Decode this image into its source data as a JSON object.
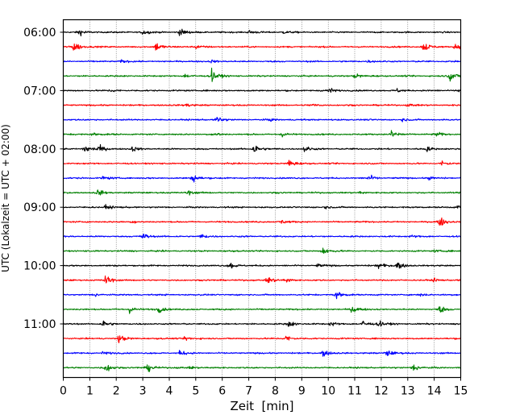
{
  "chart_data": {
    "type": "line",
    "subtype": "seismogram-helicorder",
    "xlabel": "Zeit  [min]",
    "ylabel": "UTC (Lokalzeit = UTC + 02:00)",
    "xlim": [
      0,
      15
    ],
    "x_ticks": [
      0,
      1,
      2,
      3,
      4,
      5,
      6,
      7,
      8,
      9,
      10,
      11,
      12,
      13,
      14,
      15
    ],
    "x_tick_labels": [
      "0",
      "1",
      "2",
      "3",
      "4",
      "5",
      "6",
      "7",
      "8",
      "9",
      "10",
      "11",
      "12",
      "13",
      "14",
      "15"
    ],
    "y_tick_labels": [
      "06:00",
      "07:00",
      "08:00",
      "09:00",
      "10:00",
      "11:00"
    ],
    "traces_per_hour": 4,
    "trace_minutes": 15,
    "trace_count": 24,
    "first_trace": "06:00",
    "trace_colors": [
      "#000000",
      "#ff0000",
      "#0000ff",
      "#008000"
    ],
    "vertical_grid": "dotted",
    "events": [
      [
        [
          0.6,
          1.2
        ],
        [
          3.0,
          1.0
        ],
        [
          4.4,
          1.4
        ],
        [
          7.0,
          0.7
        ],
        [
          8.3,
          0.5
        ]
      ],
      [
        [
          0.4,
          2.2
        ],
        [
          3.5,
          2.0
        ],
        [
          5.0,
          0.8
        ],
        [
          13.6,
          2.0
        ],
        [
          14.8,
          1.2
        ]
      ],
      [
        [
          2.2,
          0.5
        ],
        [
          5.6,
          0.5
        ],
        [
          11.5,
          0.4
        ]
      ],
      [
        [
          4.6,
          0.7
        ],
        [
          5.6,
          2.3
        ],
        [
          11.0,
          1.0
        ],
        [
          14.6,
          2.0
        ]
      ],
      [
        [
          1.8,
          0.5
        ],
        [
          10.0,
          1.2
        ],
        [
          12.6,
          0.6
        ],
        [
          14.9,
          0.9
        ]
      ],
      [
        [
          4.6,
          0.8
        ],
        [
          9.4,
          0.5
        ],
        [
          13.0,
          0.5
        ]
      ],
      [
        [
          5.8,
          1.2
        ],
        [
          7.8,
          0.5
        ],
        [
          12.8,
          0.4
        ]
      ],
      [
        [
          1.1,
          0.7
        ],
        [
          5.7,
          0.8
        ],
        [
          8.2,
          1.0
        ],
        [
          12.4,
          1.9
        ],
        [
          14.1,
          0.8
        ]
      ],
      [
        [
          0.8,
          1.8
        ],
        [
          1.3,
          1.5
        ],
        [
          2.6,
          0.9
        ],
        [
          7.2,
          2.0
        ],
        [
          9.1,
          1.1
        ],
        [
          13.7,
          0.9
        ]
      ],
      [
        [
          8.5,
          1.7
        ],
        [
          14.3,
          0.9
        ]
      ],
      [
        [
          1.5,
          0.7
        ],
        [
          4.9,
          1.6
        ],
        [
          11.5,
          1.3
        ],
        [
          13.8,
          0.5
        ]
      ],
      [
        [
          1.3,
          1.1
        ],
        [
          4.7,
          1.0
        ],
        [
          11.2,
          0.5
        ]
      ],
      [
        [
          1.6,
          0.9
        ],
        [
          9.8,
          0.6
        ],
        [
          14.9,
          0.8
        ]
      ],
      [
        [
          2.6,
          0.5
        ],
        [
          8.2,
          0.8
        ],
        [
          14.2,
          2.0
        ]
      ],
      [
        [
          3.0,
          1.4
        ],
        [
          5.2,
          0.9
        ],
        [
          13.1,
          0.5
        ]
      ],
      [
        [
          9.8,
          1.7
        ],
        [
          14.0,
          0.4
        ]
      ],
      [
        [
          6.3,
          1.4
        ],
        [
          9.6,
          0.6
        ],
        [
          11.9,
          1.3
        ],
        [
          12.6,
          1.5
        ]
      ],
      [
        [
          1.6,
          2.0
        ],
        [
          7.7,
          1.6
        ],
        [
          8.4,
          0.9
        ],
        [
          14.0,
          0.6
        ]
      ],
      [
        [
          1.2,
          0.5
        ],
        [
          10.3,
          1.6
        ],
        [
          13.5,
          0.5
        ]
      ],
      [
        [
          2.5,
          1.3
        ],
        [
          3.6,
          1.2
        ],
        [
          10.9,
          1.6
        ],
        [
          14.2,
          1.4
        ]
      ],
      [
        [
          1.5,
          1.4
        ],
        [
          8.5,
          1.3
        ],
        [
          10.1,
          0.9
        ],
        [
          11.3,
          1.4
        ],
        [
          11.9,
          1.1
        ]
      ],
      [
        [
          2.1,
          1.6
        ],
        [
          4.6,
          0.9
        ],
        [
          8.4,
          1.2
        ]
      ],
      [
        [
          1.5,
          0.6
        ],
        [
          4.4,
          1.0
        ],
        [
          9.8,
          1.3
        ],
        [
          12.2,
          1.4
        ]
      ],
      [
        [
          1.6,
          1.8
        ],
        [
          3.2,
          1.5
        ],
        [
          4.8,
          0.6
        ],
        [
          13.2,
          1.5
        ]
      ]
    ]
  }
}
